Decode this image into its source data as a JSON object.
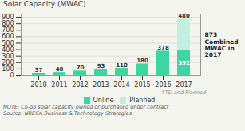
{
  "chart_data": {
    "type": "bar",
    "title": "Solar Capacity (MWAC)",
    "categories": [
      "2010",
      "2011",
      "2012",
      "2013",
      "2014",
      "2015",
      "2016",
      "2017"
    ],
    "series": [
      {
        "name": "Online",
        "color": "#3dd6a3",
        "values": [
          37,
          48,
          70,
          93,
          110,
          180,
          378,
          392
        ]
      },
      {
        "name": "Planned",
        "color": "#c2efe0",
        "values": [
          0,
          0,
          0,
          0,
          0,
          0,
          0,
          480
        ],
        "value_labels": [
          null,
          null,
          null,
          null,
          null,
          null,
          null,
          "480"
        ]
      }
    ],
    "stacked": true,
    "data_labels": true,
    "ylim": [
      0,
      950
    ],
    "yticks": [
      0,
      100,
      200,
      300,
      400,
      500,
      600,
      700,
      800,
      900
    ],
    "grid": true,
    "legend": "bottom",
    "annotations": [
      {
        "text": "873\nCombined\nMWAC in\n2017"
      },
      {
        "text": "YTD and Planned",
        "x": "2017"
      }
    ],
    "notes": [
      "NOTE: Co-op solar capacity owned or purchased under contract",
      "Source: NRECA Business & Technology Strategies"
    ]
  }
}
